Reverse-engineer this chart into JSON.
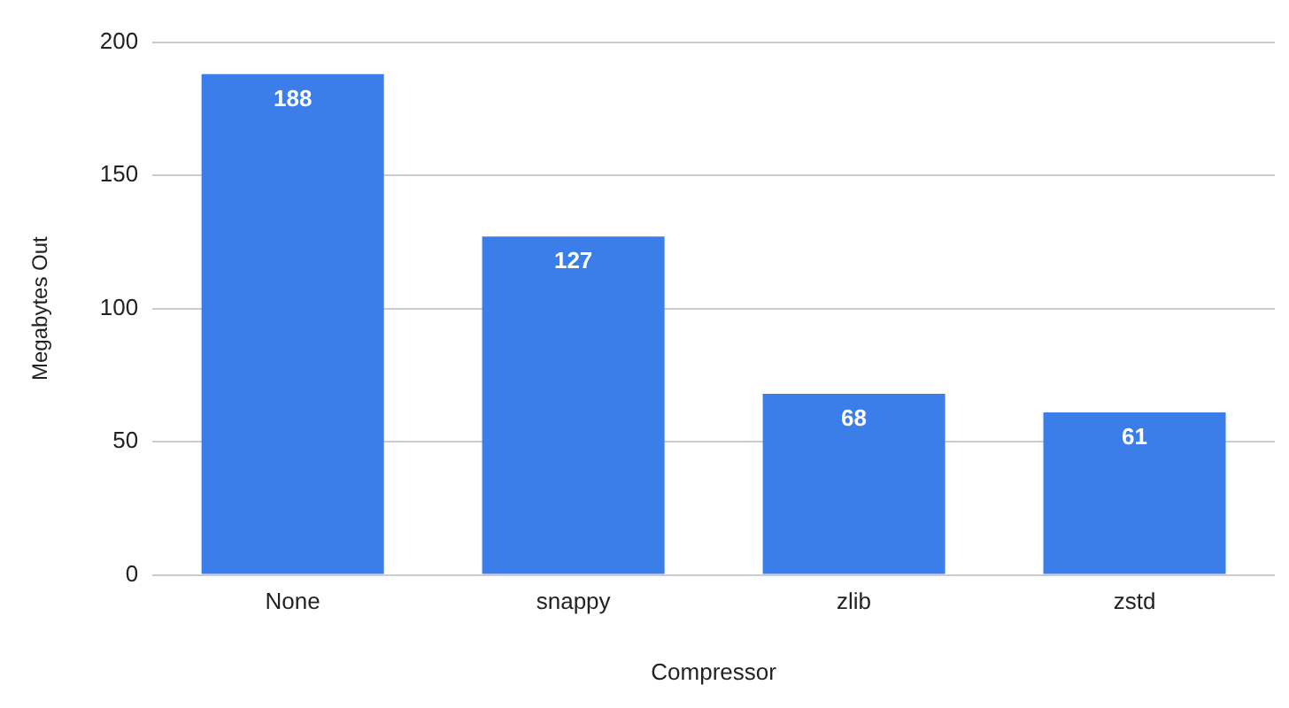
{
  "chart_data": {
    "type": "bar",
    "xlabel": "Compressor",
    "ylabel": "Megabytes Out",
    "categories": [
      "None",
      "snappy",
      "zlib",
      "zstd"
    ],
    "values": [
      188,
      127,
      68,
      61
    ],
    "color": "#3b7de9",
    "ylim": [
      0,
      200
    ],
    "yticks": [
      0,
      50,
      100,
      150,
      200
    ],
    "grid": "y",
    "data_labels": true,
    "legend": false
  }
}
